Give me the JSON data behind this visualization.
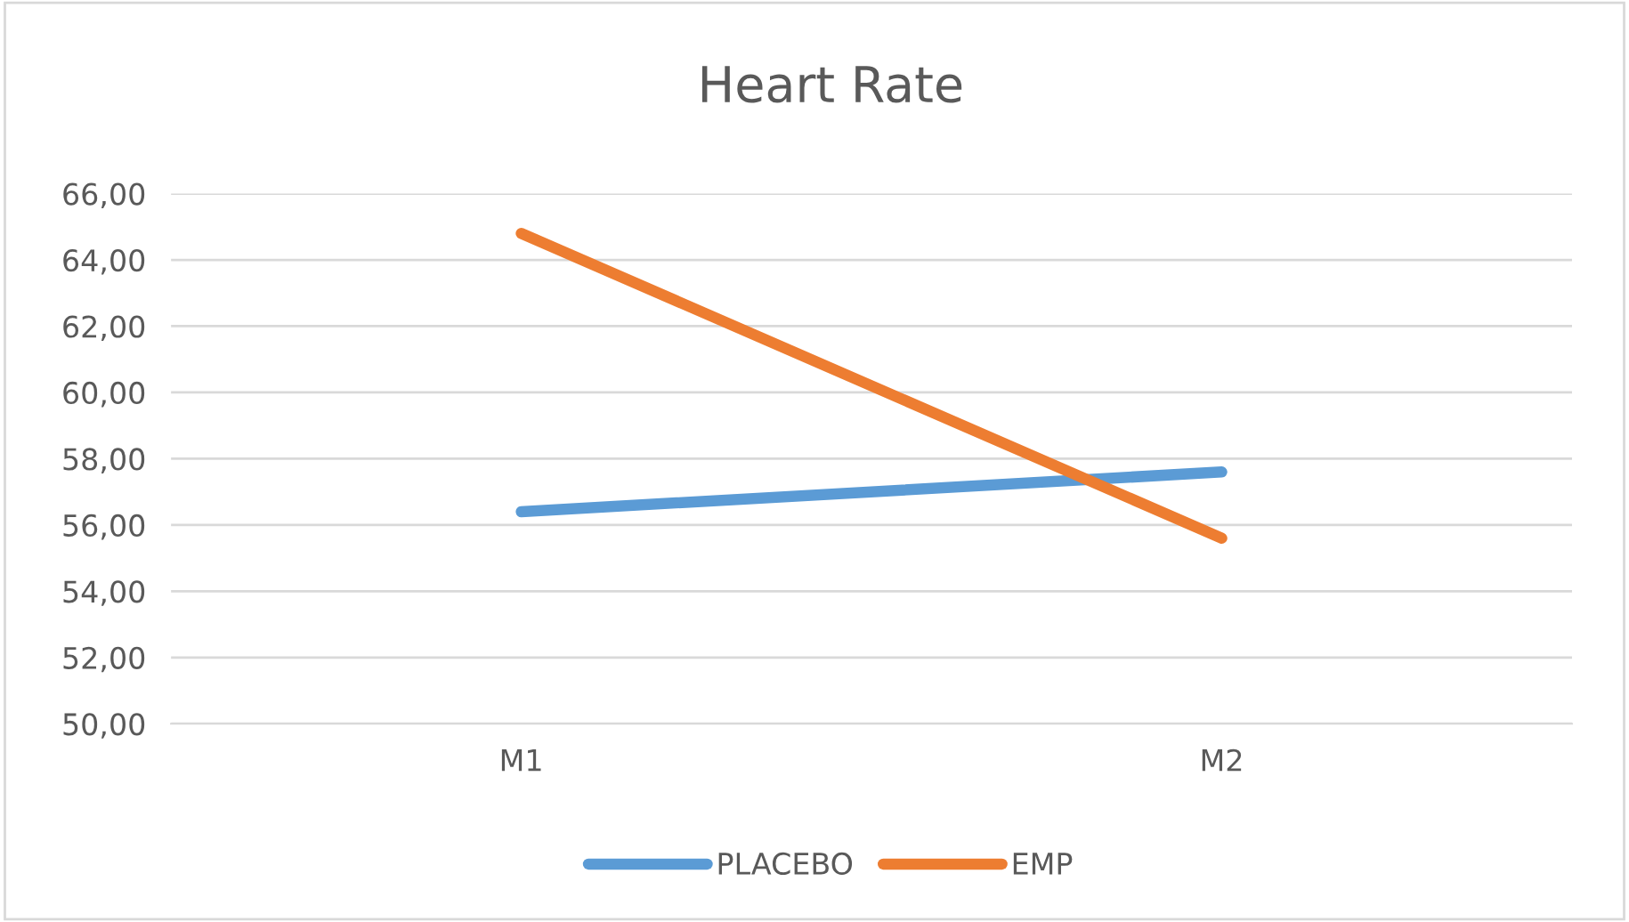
{
  "chart_data": {
    "type": "line",
    "title": "Heart Rate",
    "categories": [
      "M1",
      "M2"
    ],
    "series": [
      {
        "name": "PLACEBO",
        "color": "#5b9bd5",
        "values": [
          56.4,
          57.6
        ]
      },
      {
        "name": "EMP",
        "color": "#ed7d31",
        "values": [
          64.8,
          55.6
        ]
      }
    ],
    "ylim": [
      50,
      66
    ],
    "yticks": [
      {
        "value": 50,
        "label": "50,00"
      },
      {
        "value": 52,
        "label": "52,00"
      },
      {
        "value": 54,
        "label": "54,00"
      },
      {
        "value": 56,
        "label": "56,00"
      },
      {
        "value": 58,
        "label": "58,00"
      },
      {
        "value": 60,
        "label": "60,00"
      },
      {
        "value": 62,
        "label": "62,00"
      },
      {
        "value": 64,
        "label": "64,00"
      },
      {
        "value": 66,
        "label": "66,00"
      }
    ],
    "grid": "y",
    "legend": "bottom",
    "marker": "none",
    "line_style": "solid"
  }
}
